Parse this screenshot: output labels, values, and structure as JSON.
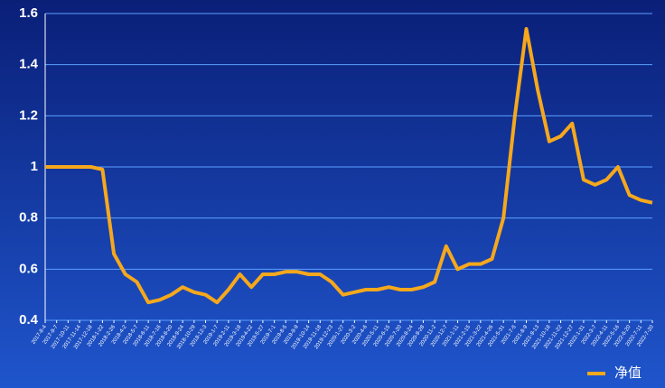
{
  "chart_data": {
    "type": "line",
    "categories": [
      "2017-8-4",
      "2017-9-7",
      "2017-10-11",
      "2017-11-14",
      "2017-12-18",
      "2018-1-22",
      "2018-2-26",
      "2018-4-2",
      "2018-5-7",
      "2018-6-11",
      "2018-7-16",
      "2018-8-20",
      "2018-9-24",
      "2018-10-29",
      "2018-12-3",
      "2019-1-7",
      "2019-2-11",
      "2019-3-18",
      "2019-4-22",
      "2019-5-27",
      "2019-7-1",
      "2019-8-5",
      "2019-9-9",
      "2019-10-14",
      "2019-11-18",
      "2019-12-23",
      "2020-1-27",
      "2020-3-2",
      "2020-4-6",
      "2020-5-11",
      "2020-6-15",
      "2020-7-20",
      "2020-8-24",
      "2020-9-28",
      "2020-11-2",
      "2020-12-7",
      "2021-1-11",
      "2021-2-15",
      "2021-3-22",
      "2021-4-26",
      "2021-5-31",
      "2021-7-5",
      "2021-8-9",
      "2021-9-13",
      "2021-10-18",
      "2021-11-22",
      "2021-12-27",
      "2022-1-31",
      "2022-3-7",
      "2022-4-11",
      "2022-5-16",
      "2022-6-20",
      "2022-7-11",
      "2022-7-20"
    ],
    "series": [
      {
        "name": "净值",
        "color": "#f6a81c",
        "values": [
          1.0,
          1.0,
          1.0,
          1.0,
          1.0,
          0.99,
          0.66,
          0.58,
          0.55,
          0.47,
          0.48,
          0.5,
          0.53,
          0.51,
          0.5,
          0.47,
          0.52,
          0.58,
          0.53,
          0.58,
          0.58,
          0.59,
          0.59,
          0.58,
          0.58,
          0.55,
          0.5,
          0.51,
          0.52,
          0.52,
          0.53,
          0.52,
          0.52,
          0.53,
          0.55,
          0.69,
          0.6,
          0.62,
          0.62,
          0.64,
          0.8,
          1.2,
          1.54,
          1.3,
          1.1,
          1.12,
          1.17,
          0.95,
          0.93,
          0.95,
          1.0,
          0.89,
          0.87,
          0.86
        ]
      }
    ],
    "ylim": [
      0.4,
      1.6
    ],
    "yticks": [
      0.4,
      0.6,
      0.8,
      1,
      1.2,
      1.4,
      1.6
    ],
    "grid": true,
    "legend": "bottom-right"
  }
}
